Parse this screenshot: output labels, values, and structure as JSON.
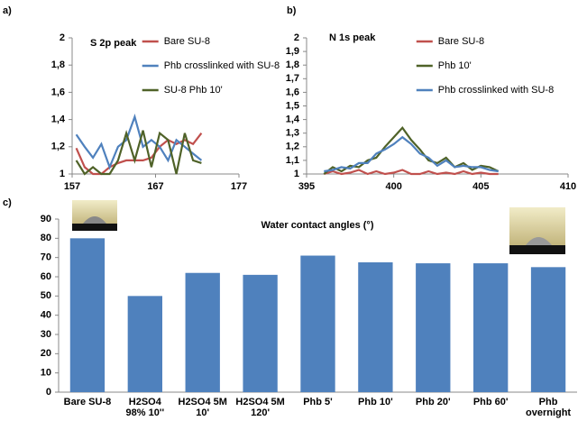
{
  "chart_data": [
    {
      "type": "line",
      "panel_label": "a)",
      "annotation": "S 2p peak",
      "x": [
        157.5,
        158.5,
        159.5,
        160.5,
        161.5,
        162.5,
        163.5,
        164.5,
        165.5,
        166.5,
        167.5,
        168.5,
        169.5,
        170.5,
        171.5,
        172.5
      ],
      "xlim": [
        157,
        177
      ],
      "xticks": [
        157,
        167,
        177
      ],
      "ylim": [
        1,
        2
      ],
      "yticks": [
        1,
        {
          "value": 1.2,
          "label": "1,2"
        },
        {
          "value": 1.4,
          "label": "1,4"
        },
        {
          "value": 1.6,
          "label": "1,6"
        },
        {
          "value": 1.8,
          "label": "1,8"
        },
        2
      ],
      "grid": false,
      "legend": "upper right",
      "series": [
        {
          "name": "Bare SU-8",
          "color": "#c0504d",
          "values": [
            1.19,
            1.05,
            1.0,
            1.0,
            1.05,
            1.08,
            1.1,
            1.1,
            1.1,
            1.12,
            1.2,
            1.25,
            1.22,
            1.25,
            1.22,
            1.3
          ]
        },
        {
          "name": "Phb crosslinked with SU-8",
          "color": "#4f81bd",
          "values": [
            1.29,
            1.2,
            1.12,
            1.22,
            1.05,
            1.2,
            1.25,
            1.42,
            1.2,
            1.25,
            1.2,
            1.1,
            1.25,
            1.2,
            1.15,
            1.1
          ]
        },
        {
          "name": "SU-8 Phb 10'",
          "color": "#4f6228",
          "values": [
            1.1,
            1.0,
            1.05,
            1.0,
            1.0,
            1.1,
            1.3,
            1.1,
            1.32,
            1.05,
            1.3,
            1.25,
            1.0,
            1.3,
            1.1,
            1.08
          ]
        }
      ]
    },
    {
      "type": "line",
      "panel_label": "b)",
      "annotation": "N 1s peak",
      "x": [
        396,
        396.5,
        397,
        397.5,
        398,
        398.5,
        399,
        399.5,
        400,
        400.5,
        401,
        401.5,
        402,
        402.5,
        403,
        403.5,
        404,
        404.5,
        405,
        405.5,
        406
      ],
      "xlim": [
        395,
        410
      ],
      "xticks": [
        395,
        400,
        405,
        410
      ],
      "ylim": [
        1,
        2
      ],
      "yticks": [
        1,
        {
          "value": 1.1,
          "label": "1,1"
        },
        {
          "value": 1.2,
          "label": "1,2"
        },
        {
          "value": 1.3,
          "label": "1,3"
        },
        {
          "value": 1.4,
          "label": "1,4"
        },
        {
          "value": 1.5,
          "label": "1,5"
        },
        {
          "value": 1.6,
          "label": "1,6"
        },
        {
          "value": 1.7,
          "label": "1,7"
        },
        {
          "value": 1.8,
          "label": "1,8"
        },
        {
          "value": 1.9,
          "label": "1,9"
        },
        2
      ],
      "grid": false,
      "legend": "upper right",
      "series": [
        {
          "name": "Bare SU-8",
          "color": "#c0504d",
          "values": [
            1.0,
            1.02,
            1.0,
            1.01,
            1.03,
            1.0,
            1.02,
            1.0,
            1.01,
            1.03,
            1.0,
            1.0,
            1.02,
            1.0,
            1.01,
            1.0,
            1.02,
            1.0,
            1.01,
            1.0,
            1.0
          ]
        },
        {
          "name": "Phb 10'",
          "color": "#4f6228",
          "values": [
            1.0,
            1.05,
            1.02,
            1.06,
            1.05,
            1.1,
            1.12,
            1.2,
            1.27,
            1.34,
            1.25,
            1.18,
            1.1,
            1.08,
            1.12,
            1.05,
            1.08,
            1.03,
            1.06,
            1.05,
            1.02
          ]
        },
        {
          "name": "Phb crosslinked with SU-8",
          "color": "#4f81bd",
          "values": [
            1.02,
            1.03,
            1.05,
            1.04,
            1.08,
            1.08,
            1.15,
            1.18,
            1.22,
            1.27,
            1.22,
            1.15,
            1.12,
            1.06,
            1.1,
            1.05,
            1.06,
            1.05,
            1.05,
            1.03,
            1.02
          ]
        }
      ]
    },
    {
      "type": "bar",
      "panel_label": "c)",
      "title": "Water contact angles (°)",
      "categories": [
        "Bare SU-8",
        "H2SO4 98% 10''",
        "H2SO4 5M 10'",
        "H2SO4 5M 120'",
        "Phb 5'",
        "Phb 10'",
        "Phb 20'",
        "Phb 60'",
        "Phb overnight"
      ],
      "values": [
        80,
        50,
        62,
        61,
        71,
        67.5,
        67,
        67,
        65
      ],
      "color": "#4f81bd",
      "ylim": [
        0,
        90
      ],
      "yticks": [
        0,
        10,
        20,
        30,
        40,
        50,
        60,
        70,
        80,
        90
      ],
      "grid": false
    }
  ]
}
